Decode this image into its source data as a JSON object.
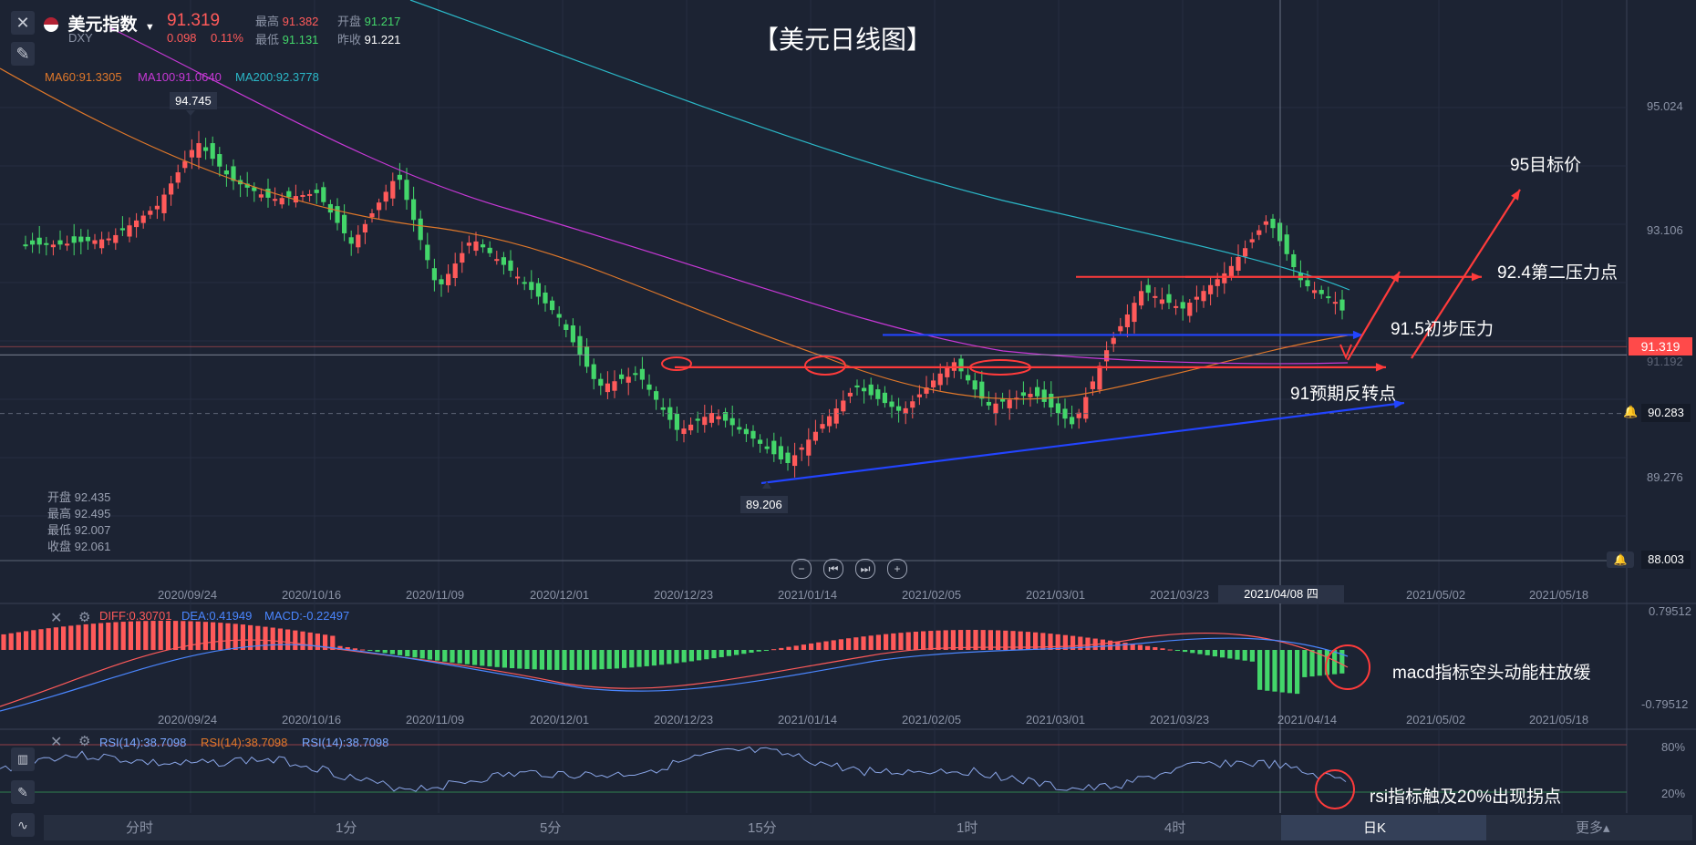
{
  "header": {
    "title": "美元指数",
    "symbol": "DXY",
    "price": "91.319",
    "change": "0.098",
    "change_pct": "0.11%",
    "high_label": "最高",
    "high": "91.382",
    "open_label": "开盘",
    "open": "91.217",
    "low_label": "最低",
    "low": "91.131",
    "prev_label": "昨收",
    "prev": "91.221"
  },
  "chart_title": "【美元日线图】",
  "ma_legend": {
    "ma60": "MA60:91.3305",
    "ma100": "MA100:91.0640",
    "ma200": "MA200:92.3778"
  },
  "ohlc_box": {
    "open": "开盘 92.435",
    "high": "最高 92.495",
    "low": "最低 92.007",
    "close": "收盘 92.061"
  },
  "colors": {
    "up": "#ff5a5a",
    "down": "#43d66a",
    "ma60": "#e0782a",
    "ma100": "#c738d6",
    "ma200": "#2bb8c8",
    "annotation_red": "#ff3b3b",
    "annotation_blue": "#2244ff"
  },
  "annotations": {
    "target": "95目标价",
    "pressure2": "92.4第二压力点",
    "pressure1": "91.5初步压力",
    "reversal": "91预期反转点",
    "macd_note": "macd指标空头动能柱放缓",
    "rsi_note": "rsi指标触及20%出现拐点"
  },
  "price_axis": {
    "ticks": [
      "95.024",
      "93.106",
      "89.276",
      "88.003"
    ],
    "current_tag": "91.319",
    "dashed_tag": "90.283",
    "dim_label": "91.192"
  },
  "extremes": {
    "high": "94.745",
    "low": "89.206"
  },
  "date_axis": [
    "2020/09/24",
    "2020/10/16",
    "2020/11/09",
    "2020/12/01",
    "2020/12/23",
    "2021/01/14",
    "2021/02/05",
    "2021/03/01",
    "2021/03/23",
    "2021/05/02",
    "2021/05/18"
  ],
  "crosshair_date": "2021/04/08 四",
  "macd": {
    "diff": "DIFF:0.30701",
    "dea": "DEA:0.41949",
    "macd": "MACD:-0.22497",
    "scale_top": "0.79512",
    "scale_bottom": "-0.79512",
    "dates": [
      "2020/09/24",
      "2020/10/16",
      "2020/11/09",
      "2020/12/01",
      "2020/12/23",
      "2021/01/14",
      "2021/02/05",
      "2021/03/01",
      "2021/03/23",
      "2021/04/14",
      "2021/05/02",
      "2021/05/18"
    ]
  },
  "rsi": {
    "label1": "RSI(14):38.7098",
    "label2": "RSI(14):38.7098",
    "label3": "RSI(14):38.7098",
    "level_high": "80%",
    "level_low": "20%"
  },
  "timeframes": [
    "分时",
    "1分",
    "5分",
    "15分",
    "1时",
    "4时",
    "日K",
    "更多▴"
  ],
  "active_timeframe": "日K",
  "chart_data": {
    "type": "candlestick",
    "title": "【美元日线图】",
    "xlabel": "",
    "ylabel": "",
    "ylim": [
      88.0,
      95.6
    ],
    "x_ticks": [
      "2020/09/24",
      "2020/10/16",
      "2020/11/09",
      "2020/12/01",
      "2020/12/23",
      "2021/01/14",
      "2021/02/05",
      "2021/03/01",
      "2021/03/23",
      "2021/05/02",
      "2021/05/18"
    ],
    "key_points": [
      {
        "date": "2020/09/25",
        "value": 94.745,
        "label": "high"
      },
      {
        "date": "2021/01/06",
        "value": 89.206,
        "label": "low"
      }
    ],
    "close_path": [
      [
        "2020/09/01",
        92.9
      ],
      [
        "2020/09/10",
        93.0
      ],
      [
        "2020/09/18",
        93.5
      ],
      [
        "2020/09/25",
        94.5
      ],
      [
        "2020/10/01",
        93.9
      ],
      [
        "2020/10/08",
        93.6
      ],
      [
        "2020/10/16",
        93.7
      ],
      [
        "2020/10/22",
        92.9
      ],
      [
        "2020/10/30",
        94.0
      ],
      [
        "2020/11/06",
        92.2
      ],
      [
        "2020/11/12",
        93.0
      ],
      [
        "2020/11/20",
        92.4
      ],
      [
        "2020/11/27",
        91.8
      ],
      [
        "2020/12/04",
        90.7
      ],
      [
        "2020/12/11",
        90.9
      ],
      [
        "2020/12/18",
        90.0
      ],
      [
        "2020/12/24",
        90.3
      ],
      [
        "2020/12/31",
        89.9
      ],
      [
        "2021/01/06",
        89.5
      ],
      [
        "2021/01/12",
        90.1
      ],
      [
        "2021/01/18",
        90.7
      ],
      [
        "2021/01/26",
        90.3
      ],
      [
        "2021/02/04",
        91.1
      ],
      [
        "2021/02/10",
        90.4
      ],
      [
        "2021/02/18",
        90.6
      ],
      [
        "2021/02/25",
        90.1
      ],
      [
        "2021/03/03",
        91.3
      ],
      [
        "2021/03/09",
        92.2
      ],
      [
        "2021/03/16",
        91.9
      ],
      [
        "2021/03/24",
        92.5
      ],
      [
        "2021/03/31",
        93.3
      ],
      [
        "2021/04/06",
        92.3
      ],
      [
        "2021/04/12",
        92.0
      ],
      [
        "2021/04/16",
        91.5
      ],
      [
        "2021/04/20",
        91.319
      ]
    ],
    "series": [
      {
        "name": "MA60",
        "value": 91.3305
      },
      {
        "name": "MA100",
        "value": 91.064
      },
      {
        "name": "MA200",
        "value": 92.3778
      }
    ],
    "horizontal_levels": [
      {
        "value": 92.4,
        "label": "92.4第二压力点"
      },
      {
        "value": 91.5,
        "label": "91.5初步压力"
      },
      {
        "value": 91.0,
        "label": "91预期反转点"
      }
    ],
    "target": {
      "value": 95.0,
      "label": "95目标价"
    },
    "subcharts": [
      {
        "type": "macd",
        "diff": 0.30701,
        "dea": 0.41949,
        "macd": -0.22497,
        "ylim": [
          -0.79512,
          0.79512
        ]
      },
      {
        "type": "rsi",
        "value": 38.7098,
        "levels": [
          80,
          20
        ]
      }
    ]
  }
}
